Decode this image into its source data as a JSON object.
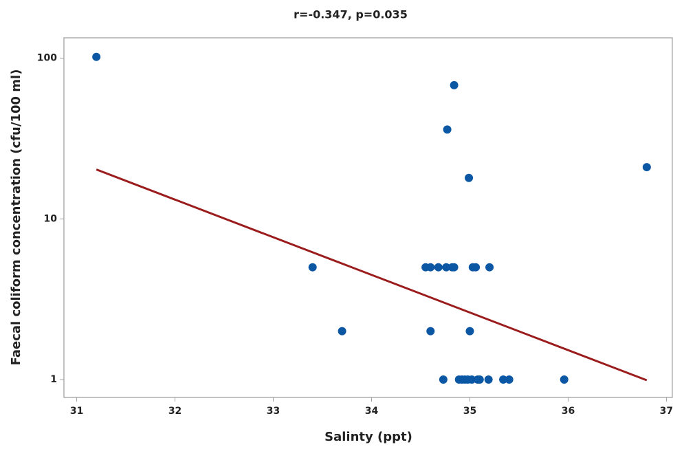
{
  "chart_data": {
    "type": "scatter",
    "title": "r=-0.347, p=0.035",
    "x_label": "Salinty (ppt)",
    "y_label": "Faecal coliform concentration (cfu/100 ml)",
    "x": [
      31.2,
      33.4,
      33.7,
      34.55,
      34.6,
      34.68,
      34.76,
      34.82,
      34.84,
      35.03,
      35.06,
      35.2,
      34.6,
      35.0,
      34.84,
      34.77,
      34.99,
      36.8,
      34.73,
      34.89,
      34.92,
      34.95,
      34.98,
      35.02,
      35.08,
      35.1,
      35.19,
      35.34,
      35.4,
      35.96
    ],
    "values": [
      102,
      5,
      2,
      5,
      5,
      5,
      5,
      5,
      5,
      5,
      5,
      5,
      2,
      2,
      68,
      36,
      18,
      21,
      1,
      1,
      1,
      1,
      1,
      1,
      1,
      1,
      1,
      1,
      1,
      1
    ],
    "color": "#0b57a4",
    "trendline": {
      "x": [
        31.2,
        36.8
      ],
      "values": [
        20.3,
        0.99
      ],
      "color": "#9b1c1c"
    },
    "xlim": [
      30.87,
      37.06
    ],
    "xticks": [
      31,
      32,
      33,
      34,
      35,
      36,
      37
    ],
    "ylim": [
      0.774,
      134
    ],
    "yticks": [
      1,
      10,
      100
    ],
    "log_y": true
  }
}
